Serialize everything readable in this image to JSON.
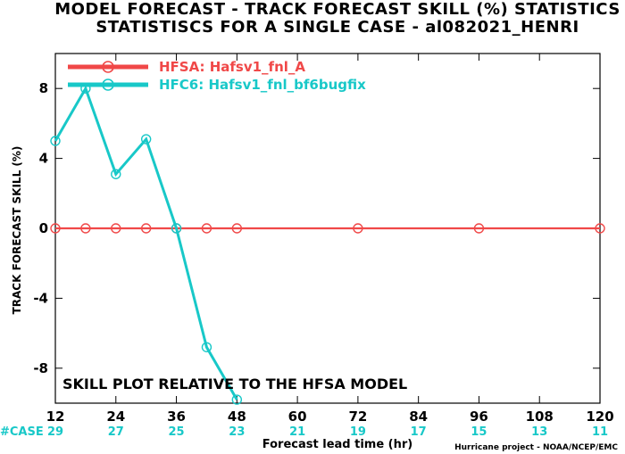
{
  "chart_data": {
    "type": "line",
    "title": "MODEL FORECAST - TRACK FORECAST SKILL (%) STATISTICS",
    "subtitle": "STATISTISCS FOR A SINGLE CASE - al082021_HENRI",
    "xlabel": "Forecast lead time (hr)",
    "ylabel": "TRACK FORECAST SKILL (%)",
    "xlim": [
      12,
      120
    ],
    "ylim": [
      -10,
      10
    ],
    "x_ticks": [
      12,
      24,
      36,
      48,
      60,
      72,
      84,
      96,
      108,
      120
    ],
    "y_ticks": [
      -8,
      -4,
      0,
      4,
      8
    ],
    "grid": false,
    "legend_position": "top-left",
    "case_label": "#CASE",
    "case_counts": [
      {
        "x": 12,
        "label": "29"
      },
      {
        "x": 24,
        "label": "27"
      },
      {
        "x": 36,
        "label": "25"
      },
      {
        "x": 48,
        "label": "23"
      },
      {
        "x": 60,
        "label": "21"
      },
      {
        "x": 72,
        "label": "19"
      },
      {
        "x": 84,
        "label": "17"
      },
      {
        "x": 96,
        "label": "15"
      },
      {
        "x": 108,
        "label": "13"
      },
      {
        "x": 120,
        "label": "11"
      }
    ],
    "series": [
      {
        "name": "HFSA: Hafsv1_fnl_A",
        "color": "#f04848",
        "x": [
          12,
          18,
          24,
          30,
          36,
          42,
          48,
          72,
          96,
          120
        ],
        "y": [
          0,
          0,
          0,
          0,
          0,
          0,
          0,
          0,
          0,
          0
        ]
      },
      {
        "name": "HFC6: Hafsv1_fnl_bf6bugfix",
        "color": "#18c8c8",
        "x": [
          12,
          18,
          24,
          30,
          36,
          42,
          48
        ],
        "y": [
          5.0,
          8.0,
          3.1,
          5.1,
          0.0,
          -6.8,
          -9.8
        ]
      }
    ],
    "annotation": "SKILL PLOT RELATIVE TO THE HFSA MODEL",
    "credit": "Hurricane project - NOAA/NCEP/EMC"
  }
}
